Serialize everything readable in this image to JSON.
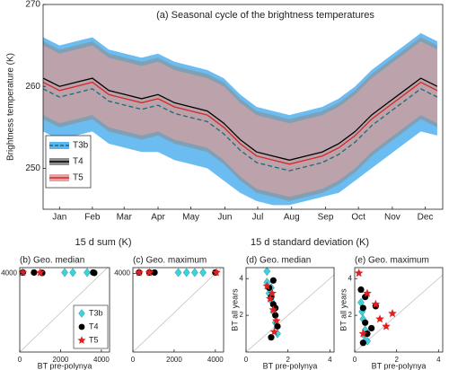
{
  "figure": {
    "headers": [
      "15 d  sum (K)",
      "15 d  standard deviation (K)"
    ]
  },
  "chart_data": [
    {
      "type": "line",
      "title": "(a) Seasonal cycle of the brightness temperatures",
      "y_label": "Brightness temperature (K)",
      "x": [
        0,
        15,
        30,
        45,
        60,
        75,
        90,
        105,
        120,
        135,
        150,
        165,
        180,
        195,
        210,
        225,
        240,
        255,
        270,
        285,
        300,
        315,
        330,
        345,
        360
      ],
      "xlim": [
        0,
        365
      ],
      "xticks": [
        {
          "value": 15,
          "label": "Jan"
        },
        {
          "value": 45,
          "label": "Feb"
        },
        {
          "value": 74,
          "label": "Mar"
        },
        {
          "value": 105,
          "label": "Apr"
        },
        {
          "value": 135,
          "label": "May"
        },
        {
          "value": 166,
          "label": "Jun"
        },
        {
          "value": 196,
          "label": "Jul"
        },
        {
          "value": 227,
          "label": "Aug"
        },
        {
          "value": 258,
          "label": "Sep"
        },
        {
          "value": 288,
          "label": "Oct"
        },
        {
          "value": 319,
          "label": "Nov"
        },
        {
          "value": 349,
          "label": "Dec"
        }
      ],
      "ylim": [
        245,
        270
      ],
      "yticks": [
        250,
        260,
        270
      ],
      "legend": "lower left",
      "series": [
        {
          "name": "T3b",
          "color": "#1d6a78",
          "band_color": "#5bb5ee",
          "dash": true,
          "values": [
            259.7,
            258.7,
            259.2,
            259.7,
            258.2,
            257.7,
            257.2,
            257.7,
            256.7,
            256.2,
            255.7,
            254.2,
            252.2,
            250.7,
            250.2,
            249.7,
            250.2,
            250.7,
            251.7,
            253.2,
            255.2,
            256.7,
            258.2,
            259.7,
            258.7
          ],
          "range_low": [
            254.5,
            253.5,
            254,
            254.5,
            253,
            252.5,
            252,
            252,
            251,
            250.5,
            250,
            248.5,
            247,
            246,
            245.5,
            245.5,
            246,
            246.5,
            247,
            248.5,
            250,
            251.5,
            253,
            254.5,
            254
          ],
          "range_high": [
            266,
            265,
            265.5,
            266,
            264.5,
            264,
            263.5,
            264,
            263,
            262.5,
            262,
            261,
            259,
            257.5,
            257,
            256.5,
            257,
            257.5,
            258.5,
            260,
            262,
            263.5,
            265,
            266.5,
            265.5
          ]
        },
        {
          "name": "T4",
          "color": "#000000",
          "band_color": "#8e8e8e",
          "dash": false,
          "values": [
            261,
            260,
            260.5,
            261,
            259.5,
            259,
            258.5,
            259,
            258,
            257.5,
            257,
            255.5,
            253.5,
            252,
            251.5,
            251,
            251.5,
            252,
            253,
            254.5,
            256.5,
            258,
            259.5,
            261,
            260
          ],
          "range_low": [
            256,
            255,
            255.5,
            256,
            254.5,
            254,
            253.5,
            254,
            253,
            252.5,
            252,
            250.5,
            248.5,
            247,
            246.5,
            246,
            246.5,
            247,
            248,
            249.5,
            251.5,
            253,
            254.5,
            256,
            255
          ],
          "range_high": [
            265.5,
            264.5,
            265,
            265.5,
            264,
            263.5,
            263,
            263.5,
            262.5,
            262,
            261.5,
            260.5,
            258.5,
            257,
            256.5,
            256,
            256.5,
            257,
            258,
            259.5,
            261.5,
            263,
            264.5,
            266,
            265
          ]
        },
        {
          "name": "T5",
          "color": "#d62728",
          "band_color": "#e5a3a3",
          "dash": false,
          "values": [
            260.5,
            259.5,
            260,
            260.5,
            259,
            258.5,
            258,
            258.5,
            257.5,
            257,
            256.5,
            255,
            253,
            251.5,
            251,
            250.5,
            251,
            251.5,
            252.5,
            254,
            256,
            257.5,
            259,
            260.5,
            259.5
          ],
          "range_low": [
            256.5,
            255.5,
            256,
            256.5,
            255,
            254.5,
            254,
            254.5,
            253.5,
            253,
            252.5,
            251,
            249,
            247.5,
            247,
            246.5,
            247,
            247.5,
            248.5,
            250,
            252,
            253.5,
            255,
            256.5,
            255.5
          ],
          "range_high": [
            265,
            264,
            264.5,
            265,
            263.5,
            263,
            262.5,
            263,
            262,
            261.5,
            261,
            260,
            258,
            256.5,
            256,
            255.5,
            256,
            256.5,
            257.5,
            259,
            261,
            262.5,
            264,
            265.5,
            264.5
          ]
        }
      ]
    },
    {
      "type": "scatter",
      "title": "(b) Geo. median",
      "x_label": "BT pre-polynya",
      "xlim": [
        0,
        4400
      ],
      "xticks": [
        0,
        2000,
        4000
      ],
      "ylim": [
        0,
        4300
      ],
      "yticks": [
        4000
      ],
      "legend": "lower right",
      "series": [
        {
          "name": "T3b",
          "color": "#3fd0d8",
          "marker": "diamond",
          "x": [
            2200,
            2600,
            3300
          ],
          "values": [
            4050,
            4050,
            4050
          ]
        },
        {
          "name": "T4",
          "color": "#000000",
          "marker": "circle",
          "x": [
            150,
            700,
            1100,
            3600,
            3650
          ],
          "values": [
            4050,
            4050,
            4030,
            4050,
            4030
          ]
        },
        {
          "name": "T5",
          "color": "#e02020",
          "marker": "star",
          "x": [
            150,
            1000
          ],
          "values": [
            4050,
            4050
          ]
        }
      ]
    },
    {
      "type": "scatter",
      "title": "(c) Geo. maximum",
      "xlim": [
        0,
        4400
      ],
      "xticks": [
        0,
        2000,
        4000
      ],
      "ylim": [
        0,
        4300
      ],
      "yticks": [
        4000
      ],
      "series": [
        {
          "name": "T3b",
          "color": "#3fd0d8",
          "marker": "diamond",
          "x": [
            2200,
            2600,
            3000,
            3400
          ],
          "values": [
            4050,
            4050,
            4050,
            4050
          ]
        },
        {
          "name": "T4",
          "color": "#000000",
          "marker": "circle",
          "x": [
            300,
            800,
            1050,
            4000
          ],
          "values": [
            4050,
            4050,
            4050,
            4050
          ]
        },
        {
          "name": "T5",
          "color": "#e02020",
          "marker": "star",
          "x": [
            300,
            800,
            4050
          ],
          "values": [
            4050,
            4050,
            4050
          ]
        }
      ]
    },
    {
      "type": "scatter",
      "title": "(d) Geo. median",
      "x_label": "BT pre-polynya",
      "y_label": "BT all years",
      "xlim": [
        0,
        4.2
      ],
      "xticks": [
        0,
        2,
        4
      ],
      "ylim": [
        0,
        4.6
      ],
      "yticks": [
        2,
        4
      ],
      "series": [
        {
          "name": "T3b",
          "color": "#3fd0d8",
          "marker": "diamond",
          "x": [
            1.0,
            1.1,
            1.2,
            1.3,
            1.4,
            1.5,
            1.0,
            1.2
          ],
          "values": [
            3.8,
            3.2,
            2.8,
            2.2,
            1.6,
            1.0,
            4.4,
            3.5
          ]
        },
        {
          "name": "T4",
          "color": "#000000",
          "marker": "circle",
          "x": [
            1.1,
            1.2,
            1.3,
            1.4,
            1.5,
            1.2,
            1.3,
            1.4
          ],
          "values": [
            3.5,
            3.0,
            2.6,
            2.0,
            1.4,
            0.8,
            3.9,
            2.4
          ]
        },
        {
          "name": "T5",
          "color": "#e02020",
          "marker": "star",
          "x": [
            1.0,
            1.15,
            1.3,
            1.45,
            1.25,
            1.35
          ],
          "values": [
            3.6,
            2.9,
            2.3,
            1.7,
            3.2,
            1.1
          ]
        }
      ]
    },
    {
      "type": "scatter",
      "title": "(e) Geo. maximum",
      "x_label": "BT pre-polynya",
      "y_label": "BT all years",
      "xlim": [
        0,
        4.2
      ],
      "xticks": [
        0,
        2,
        4
      ],
      "ylim": [
        0,
        4.6
      ],
      "yticks": [
        2,
        4
      ],
      "series": [
        {
          "name": "T3b",
          "color": "#3fd0d8",
          "marker": "diamond",
          "x": [
            0.3,
            0.4,
            0.5,
            0.6,
            0.35,
            0.45
          ],
          "values": [
            2.7,
            1.8,
            1.2,
            0.6,
            2.2,
            0.9
          ]
        },
        {
          "name": "T4",
          "color": "#000000",
          "marker": "circle",
          "x": [
            0.3,
            0.4,
            0.5,
            0.6,
            0.8,
            1.0,
            0.4,
            0.5
          ],
          "values": [
            3.4,
            2.4,
            1.6,
            1.0,
            1.3,
            2.5,
            0.5,
            3.0
          ]
        },
        {
          "name": "T5",
          "color": "#e02020",
          "marker": "star",
          "x": [
            0.2,
            0.6,
            1.0,
            1.5,
            1.8,
            0.4,
            1.2
          ],
          "values": [
            4.3,
            3.2,
            2.6,
            1.4,
            2.1,
            1.0,
            1.8
          ]
        }
      ]
    }
  ]
}
